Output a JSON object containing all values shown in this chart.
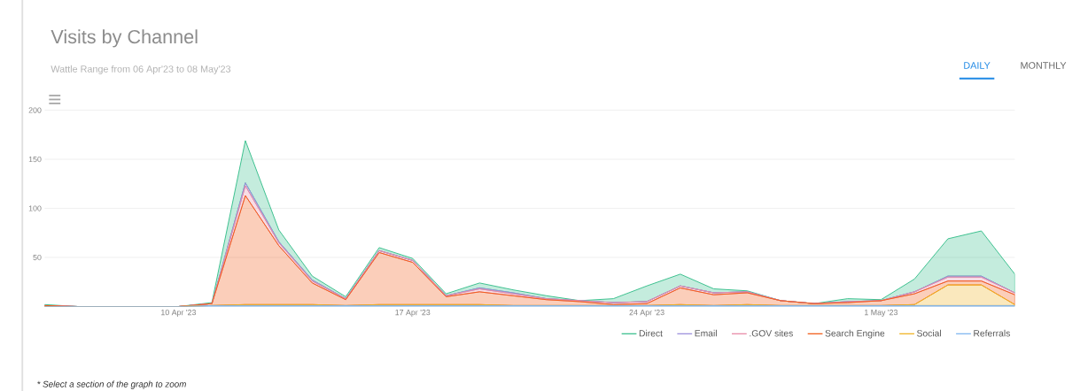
{
  "chart_data": {
    "type": "area",
    "stacked": true,
    "title": "Visits by Channel",
    "subtitle": "Wattle Range from 06 Apr'23 to 08 May'23",
    "annotations": [
      "DAILY",
      "MONTHLY",
      "* Select a section of the graph to zoom"
    ],
    "x": [
      "2023-04-06",
      "2023-04-07",
      "2023-04-08",
      "2023-04-09",
      "2023-04-10",
      "2023-04-11",
      "2023-04-12",
      "2023-04-13",
      "2023-04-14",
      "2023-04-15",
      "2023-04-16",
      "2023-04-17",
      "2023-04-18",
      "2023-04-19",
      "2023-04-20",
      "2023-04-21",
      "2023-04-22",
      "2023-04-23",
      "2023-04-24",
      "2023-04-25",
      "2023-04-26",
      "2023-04-27",
      "2023-04-28",
      "2023-04-29",
      "2023-04-30",
      "2023-05-01",
      "2023-05-02",
      "2023-05-03",
      "2023-05-04",
      "2023-05-05"
    ],
    "xlim": [
      "2023-04-06",
      "2023-05-05"
    ],
    "xticks": [
      {
        "value": "2023-04-10",
        "label": "10 Apr '23"
      },
      {
        "value": "2023-04-17",
        "label": "17 Apr '23"
      },
      {
        "value": "2023-04-24",
        "label": "24 Apr '23"
      },
      {
        "value": "2023-05-01",
        "label": "1 May '23"
      }
    ],
    "ylim": [
      0,
      200
    ],
    "yticks": [
      50,
      100,
      150,
      200
    ],
    "grid": "y",
    "legend": "bottom right",
    "series": [
      {
        "name": "Referrals",
        "color": "#7fb6f0",
        "values": [
          0,
          0,
          0,
          0,
          0,
          1,
          1,
          1,
          1,
          1,
          1,
          1,
          1,
          1,
          1,
          1,
          1,
          1,
          1,
          1,
          1,
          1,
          1,
          1,
          1,
          1,
          1,
          1,
          1,
          1
        ]
      },
      {
        "name": "Social",
        "color": "#f0b323",
        "values": [
          0,
          0,
          0,
          0,
          0,
          0,
          1,
          1,
          1,
          0,
          1,
          1,
          1,
          1,
          0,
          0,
          0,
          0,
          0,
          1,
          0,
          1,
          0,
          0,
          0,
          0,
          1,
          21,
          21,
          1
        ]
      },
      {
        "name": "Search Engine",
        "color": "#f25c19",
        "values": [
          1,
          0,
          0,
          0,
          0,
          2,
          111,
          60,
          22,
          6,
          53,
          43,
          8,
          13,
          10,
          6,
          4,
          1,
          2,
          17,
          11,
          12,
          5,
          2,
          3,
          5,
          11,
          4,
          4,
          10
        ]
      },
      {
        "name": ".GOV sites",
        "color": "#e88aa6",
        "values": [
          0,
          0,
          0,
          0,
          0,
          0,
          10,
          3,
          2,
          1,
          2,
          2,
          1,
          3,
          2,
          1,
          1,
          2,
          2,
          2,
          2,
          1,
          0,
          0,
          1,
          0,
          2,
          4,
          4,
          2
        ]
      },
      {
        "name": "Email",
        "color": "#9b8fdc",
        "values": [
          0,
          0,
          0,
          0,
          0,
          0,
          3,
          1,
          1,
          0,
          0,
          0,
          0,
          1,
          1,
          0,
          0,
          0,
          0,
          0,
          0,
          0,
          0,
          0,
          0,
          0,
          0,
          1,
          1,
          0
        ]
      },
      {
        "name": "Direct",
        "color": "#3cc08e",
        "values": [
          1,
          0,
          0,
          0,
          0,
          1,
          43,
          12,
          4,
          2,
          3,
          2,
          2,
          5,
          3,
          3,
          0,
          4,
          16,
          12,
          4,
          1,
          0,
          0,
          3,
          1,
          13,
          38,
          46,
          19
        ]
      }
    ]
  }
}
